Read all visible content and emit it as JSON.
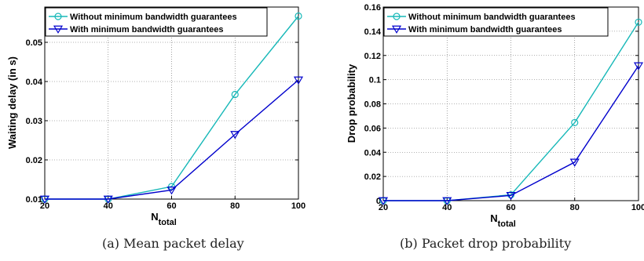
{
  "colors": {
    "series1": "#17b8b8",
    "series2": "#0000cc",
    "grid": "#666666"
  },
  "captions": [
    "(a)  Mean packet delay",
    "(b)  Packet drop probability"
  ],
  "chart_data": [
    {
      "type": "line",
      "xlabel": "N",
      "xlabel_sub": "total",
      "ylabel": "Waiting delay (in s)",
      "x": [
        20,
        40,
        60,
        80,
        100
      ],
      "xticks": [
        "20",
        "40",
        "60",
        "80",
        "100"
      ],
      "yticks": [
        "0.01",
        "0.02",
        "0.03",
        "0.04",
        "0.05"
      ],
      "ytick_values": [
        0.01,
        0.02,
        0.03,
        0.04,
        0.05
      ],
      "xlim": [
        20,
        100
      ],
      "ylim": [
        0.01,
        0.059
      ],
      "grid": true,
      "legend": "top-left",
      "series": [
        {
          "name": "Without minimum bandwidth guarantees",
          "marker": "circle",
          "values": [
            0.01,
            0.01,
            0.0132,
            0.0367,
            0.0567
          ]
        },
        {
          "name": "With minimum bandwidth guarantees",
          "marker": "triangle-down",
          "values": [
            0.01,
            0.01,
            0.0123,
            0.0265,
            0.0404
          ]
        }
      ]
    },
    {
      "type": "line",
      "xlabel": "N",
      "xlabel_sub": "total",
      "ylabel": "Drop probability",
      "x": [
        20,
        40,
        60,
        80,
        100
      ],
      "xticks": [
        "20",
        "40",
        "60",
        "80",
        "100"
      ],
      "yticks": [
        "0",
        "0.02",
        "0.04",
        "0.06",
        "0.08",
        "0.1",
        "0.12",
        "0.14",
        "0.16"
      ],
      "ytick_values": [
        0,
        0.02,
        0.04,
        0.06,
        0.08,
        0.1,
        0.12,
        0.14,
        0.16
      ],
      "xlim": [
        20,
        100
      ],
      "ylim": [
        0,
        0.16
      ],
      "grid": true,
      "legend": "top-left",
      "series": [
        {
          "name": "Without minimum bandwidth guarantees",
          "marker": "circle",
          "values": [
            0,
            0,
            0.0048,
            0.0645,
            0.1475
          ]
        },
        {
          "name": "With minimum bandwidth guarantees",
          "marker": "triangle-down",
          "values": [
            0,
            0,
            0.0043,
            0.0318,
            0.1115
          ]
        }
      ]
    }
  ]
}
